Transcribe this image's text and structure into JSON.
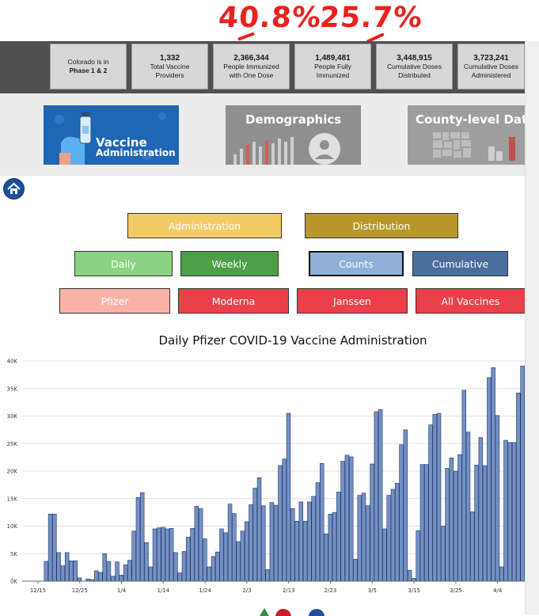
{
  "annotations": {
    "one_dose_pct": "40.8%",
    "fully_pct": "25.7%"
  },
  "stats": [
    {
      "line1": "Colorado is in",
      "line2": "Phase 1 & 2",
      "line3": ""
    },
    {
      "line1": "1,332",
      "line2": "Total Vaccine",
      "line3": "Providers"
    },
    {
      "line1": "2,366,344",
      "line2": "People Immunized",
      "line3": "with One Dose"
    },
    {
      "line1": "1,489,481",
      "line2": "People Fully",
      "line3": "Immunized"
    },
    {
      "line1": "3,448,915",
      "line2": "Cumulative Doses",
      "line3": "Distributed"
    },
    {
      "line1": "3,723,241",
      "line2": "Cumulative Doses",
      "line3": "Administered"
    }
  ],
  "tiles": {
    "vaccine_line1": "Vaccine",
    "vaccine_line2": "Administration",
    "demographics": "Demographics",
    "county": "County-level Dat"
  },
  "buttons": {
    "administration": "Administration",
    "distribution": "Distribution",
    "daily": "Daily",
    "weekly": "Weekly",
    "counts": "Counts",
    "cumulative": "Cumulative",
    "pfizer": "Pfizer",
    "moderna": "Moderna",
    "janssen": "Janssen",
    "all_vaccines": "All Vaccines"
  },
  "colors": {
    "administration": "#f2cb66",
    "distribution": "#b8972a",
    "daily": "#8bd383",
    "weekly": "#4c9e47",
    "counts": "#8fb0d6",
    "cumulative": "#4a6e9e",
    "pfizer": "#f8b3a6",
    "moderna": "#e94049",
    "bar": "#7490c4",
    "bar_stroke": "#1f3766"
  },
  "chart_data": {
    "type": "bar",
    "title": "Daily Pfizer COVID-19 Vaccine Administration",
    "xlabel": "",
    "ylabel": "",
    "ylim": [
      0,
      40000
    ],
    "y_ticks": [
      "0K",
      "5K",
      "10K",
      "15K",
      "20K",
      "25K",
      "30K",
      "35K",
      "40K"
    ],
    "x_ticks": [
      "12/15",
      "12/25",
      "1/4",
      "1/14",
      "1/24",
      "2/3",
      "2/13",
      "2/23",
      "3/5",
      "3/15",
      "3/25",
      "4/4"
    ],
    "start_date": "12/14",
    "values": [
      0,
      0,
      0,
      3600,
      12200,
      12200,
      5200,
      2800,
      5200,
      3700,
      3700,
      600,
      0,
      400,
      300,
      1900,
      1600,
      5000,
      3600,
      900,
      3500,
      1100,
      3000,
      3800,
      9100,
      15200,
      16100,
      7000,
      2600,
      9500,
      9700,
      9800,
      9500,
      9600,
      5200,
      1500,
      5400,
      8000,
      9600,
      13600,
      13200,
      7700,
      2600,
      4500,
      5300,
      9500,
      8800,
      14000,
      12300,
      7200,
      9100,
      10800,
      13900,
      16900,
      18800,
      13700,
      2100,
      14300,
      13800,
      21000,
      22200,
      30500,
      13200,
      10900,
      14400,
      10900,
      14400,
      15400,
      17900,
      21400,
      8600,
      12200,
      12500,
      16200,
      21800,
      22900,
      22600,
      4000,
      15600,
      16000,
      13700,
      21300,
      30800,
      31200,
      9500,
      15600,
      16700,
      17800,
      24800,
      27500,
      2000,
      500,
      9200,
      21200,
      21200,
      28400,
      30300,
      30500,
      10000,
      20500,
      22400,
      20000,
      23000,
      34700,
      27100,
      12600,
      21100,
      26100,
      21000,
      37000,
      38800,
      30100,
      2600,
      25600,
      25200,
      25200,
      34200,
      39100
    ]
  }
}
